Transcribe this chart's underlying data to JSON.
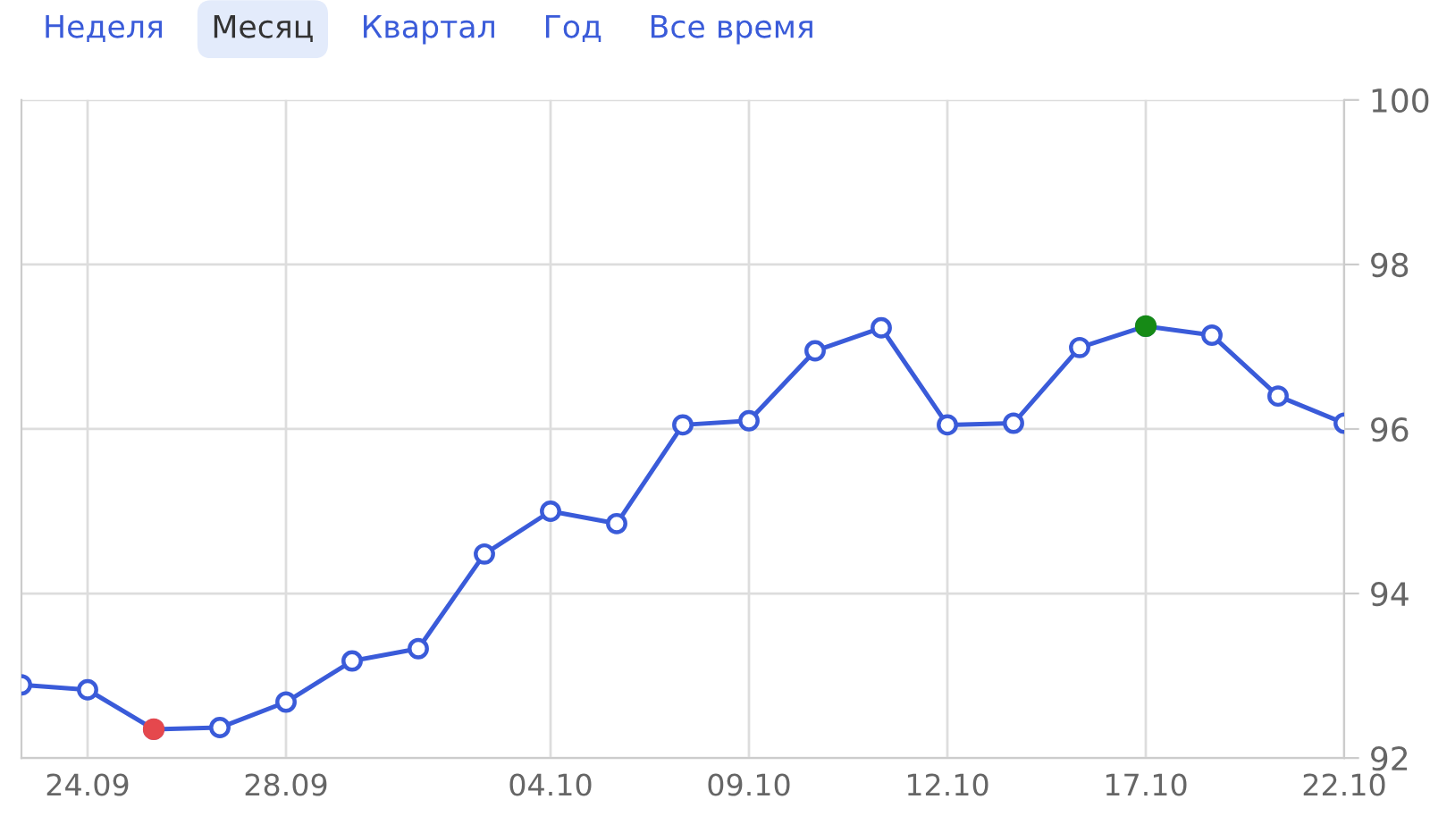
{
  "chart_data": {
    "type": "line",
    "annotations": [
      "Неделя",
      "Месяц",
      "Квартал",
      "Год",
      "Все время"
    ],
    "categories": [
      null,
      "24.09",
      null,
      null,
      "28.09",
      null,
      null,
      null,
      "04.10",
      null,
      null,
      "09.10",
      null,
      null,
      "12.10",
      null,
      null,
      "17.10",
      null,
      null,
      "22.10"
    ],
    "series": [
      {
        "color": "#3a5bd9",
        "marker": "circle",
        "values": [
          92.89,
          92.83,
          92.35,
          92.37,
          92.68,
          93.18,
          93.33,
          94.48,
          95.0,
          94.85,
          96.05,
          96.1,
          96.95,
          97.23,
          96.05,
          96.07,
          96.99,
          97.25,
          97.14,
          96.4,
          96.07
        ]
      },
      {
        "type": "scatter",
        "color": "#e5484d",
        "values": [
          null,
          null,
          92.35,
          null,
          null,
          null,
          null,
          null,
          null,
          null,
          null,
          null,
          null,
          null,
          null,
          null,
          null,
          null,
          null,
          null,
          null
        ]
      },
      {
        "type": "scatter",
        "color": "#168a16",
        "values": [
          null,
          null,
          null,
          null,
          null,
          null,
          null,
          null,
          null,
          null,
          null,
          null,
          null,
          null,
          null,
          null,
          null,
          97.25,
          null,
          null,
          null
        ]
      }
    ],
    "ylim": [
      92,
      100
    ],
    "yticks": [
      92,
      94,
      96,
      98,
      100
    ],
    "grid": true
  }
}
